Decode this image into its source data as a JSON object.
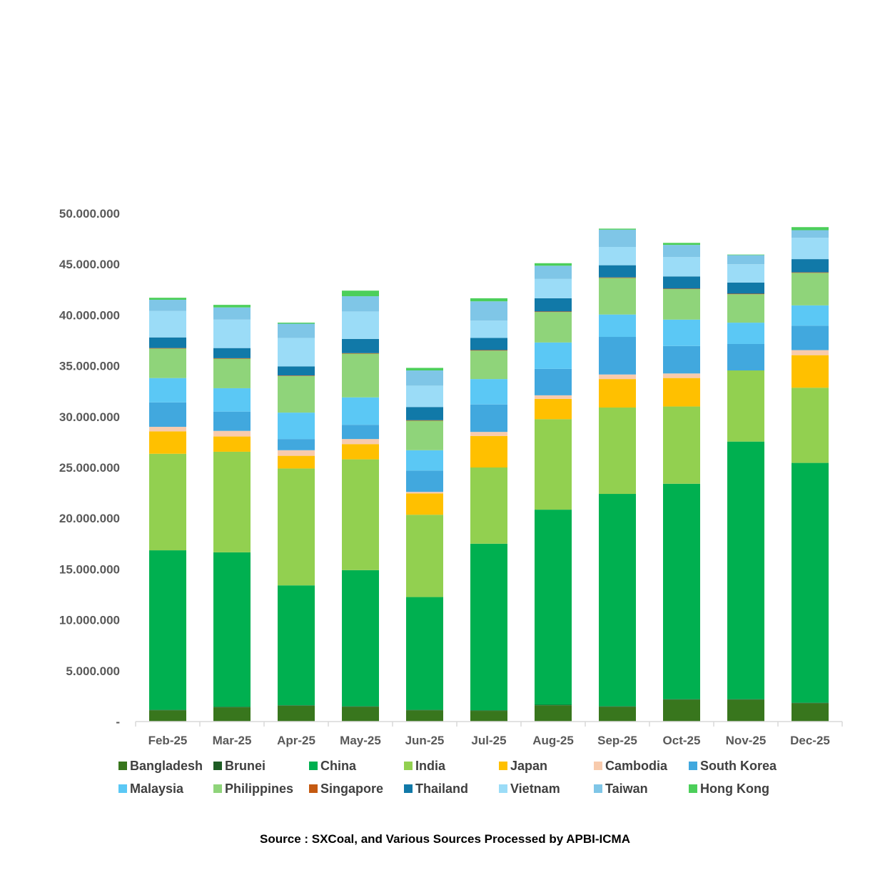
{
  "chart_data": {
    "type": "bar",
    "stacked": true,
    "title": "",
    "xlabel": "",
    "ylabel": "",
    "ylim": [
      0,
      50000000
    ],
    "yticks": [
      0,
      5000000,
      10000000,
      15000000,
      20000000,
      25000000,
      30000000,
      35000000,
      40000000,
      45000000,
      50000000
    ],
    "ytick_labels": [
      "-",
      "5.000.000",
      "10.000.000",
      "15.000.000",
      "20.000.000",
      "25.000.000",
      "30.000.000",
      "35.000.000",
      "40.000.000",
      "45.000.000",
      "50.000.000"
    ],
    "categories": [
      "Feb-25",
      "Mar-25",
      "Apr-25",
      "May-25",
      "Jun-25",
      "Jul-25",
      "Aug-25",
      "Sep-25",
      "Oct-25",
      "Nov-25",
      "Dec-25"
    ],
    "legend_position": "bottom",
    "series": [
      {
        "name": "Bangladesh",
        "color": "#38761d",
        "values": [
          1100000,
          1400000,
          1550000,
          1450000,
          1100000,
          1050000,
          1600000,
          1450000,
          2150000,
          2150000,
          1800000
        ]
      },
      {
        "name": "Brunei",
        "color": "#1e5c24",
        "values": [
          50000,
          50000,
          50000,
          50000,
          50000,
          50000,
          50000,
          50000,
          50000,
          50000,
          50000
        ]
      },
      {
        "name": "China",
        "color": "#00b050",
        "values": [
          15700000,
          15200000,
          11800000,
          13400000,
          11100000,
          16400000,
          19200000,
          20900000,
          21200000,
          25350000,
          23600000
        ]
      },
      {
        "name": "India",
        "color": "#92d050",
        "values": [
          9500000,
          9900000,
          11500000,
          10900000,
          8100000,
          7500000,
          8900000,
          8500000,
          7600000,
          7000000,
          7400000
        ]
      },
      {
        "name": "Japan",
        "color": "#ffc000",
        "values": [
          2200000,
          1500000,
          1250000,
          1500000,
          2100000,
          3100000,
          2000000,
          2800000,
          2800000,
          0,
          3200000
        ]
      },
      {
        "name": "Cambodia",
        "color": "#f8cbad",
        "values": [
          450000,
          550000,
          550000,
          500000,
          150000,
          400000,
          350000,
          450000,
          450000,
          0,
          500000
        ]
      },
      {
        "name": "South Korea",
        "color": "#41a8de",
        "values": [
          2400000,
          1900000,
          1100000,
          1400000,
          2100000,
          2700000,
          2600000,
          3700000,
          2700000,
          2600000,
          2400000
        ]
      },
      {
        "name": "Malaysia",
        "color": "#5bc8f5",
        "values": [
          2400000,
          2300000,
          2600000,
          2700000,
          2000000,
          2500000,
          2600000,
          2200000,
          2600000,
          2100000,
          2000000
        ]
      },
      {
        "name": "Philippines",
        "color": "#8fd47a",
        "values": [
          2900000,
          2900000,
          3600000,
          4300000,
          2900000,
          2800000,
          3000000,
          3600000,
          3000000,
          2800000,
          3200000
        ]
      },
      {
        "name": "Singapore",
        "color": "#c55a11",
        "values": [
          50000,
          50000,
          50000,
          50000,
          50000,
          50000,
          50000,
          50000,
          50000,
          50000,
          50000
        ]
      },
      {
        "name": "Thailand",
        "color": "#1179a8",
        "values": [
          1050000,
          1000000,
          900000,
          1400000,
          1300000,
          1200000,
          1300000,
          1200000,
          1200000,
          1100000,
          1300000
        ]
      },
      {
        "name": "Vietnam",
        "color": "#9bdcf7",
        "values": [
          2600000,
          2800000,
          2800000,
          2700000,
          2100000,
          1700000,
          1900000,
          1800000,
          1900000,
          1800000,
          2100000
        ]
      },
      {
        "name": "Taiwan",
        "color": "#7fc6e7",
        "values": [
          1100000,
          1200000,
          1400000,
          1500000,
          1500000,
          1900000,
          1300000,
          1700000,
          1200000,
          900000,
          750000
        ]
      },
      {
        "name": "Hong Kong",
        "color": "#4ccf5a",
        "values": [
          200000,
          250000,
          100000,
          550000,
          250000,
          300000,
          250000,
          100000,
          200000,
          50000,
          300000
        ]
      }
    ]
  },
  "source": "Source : SXCoal, and Various Sources Processed by APBI-ICMA"
}
